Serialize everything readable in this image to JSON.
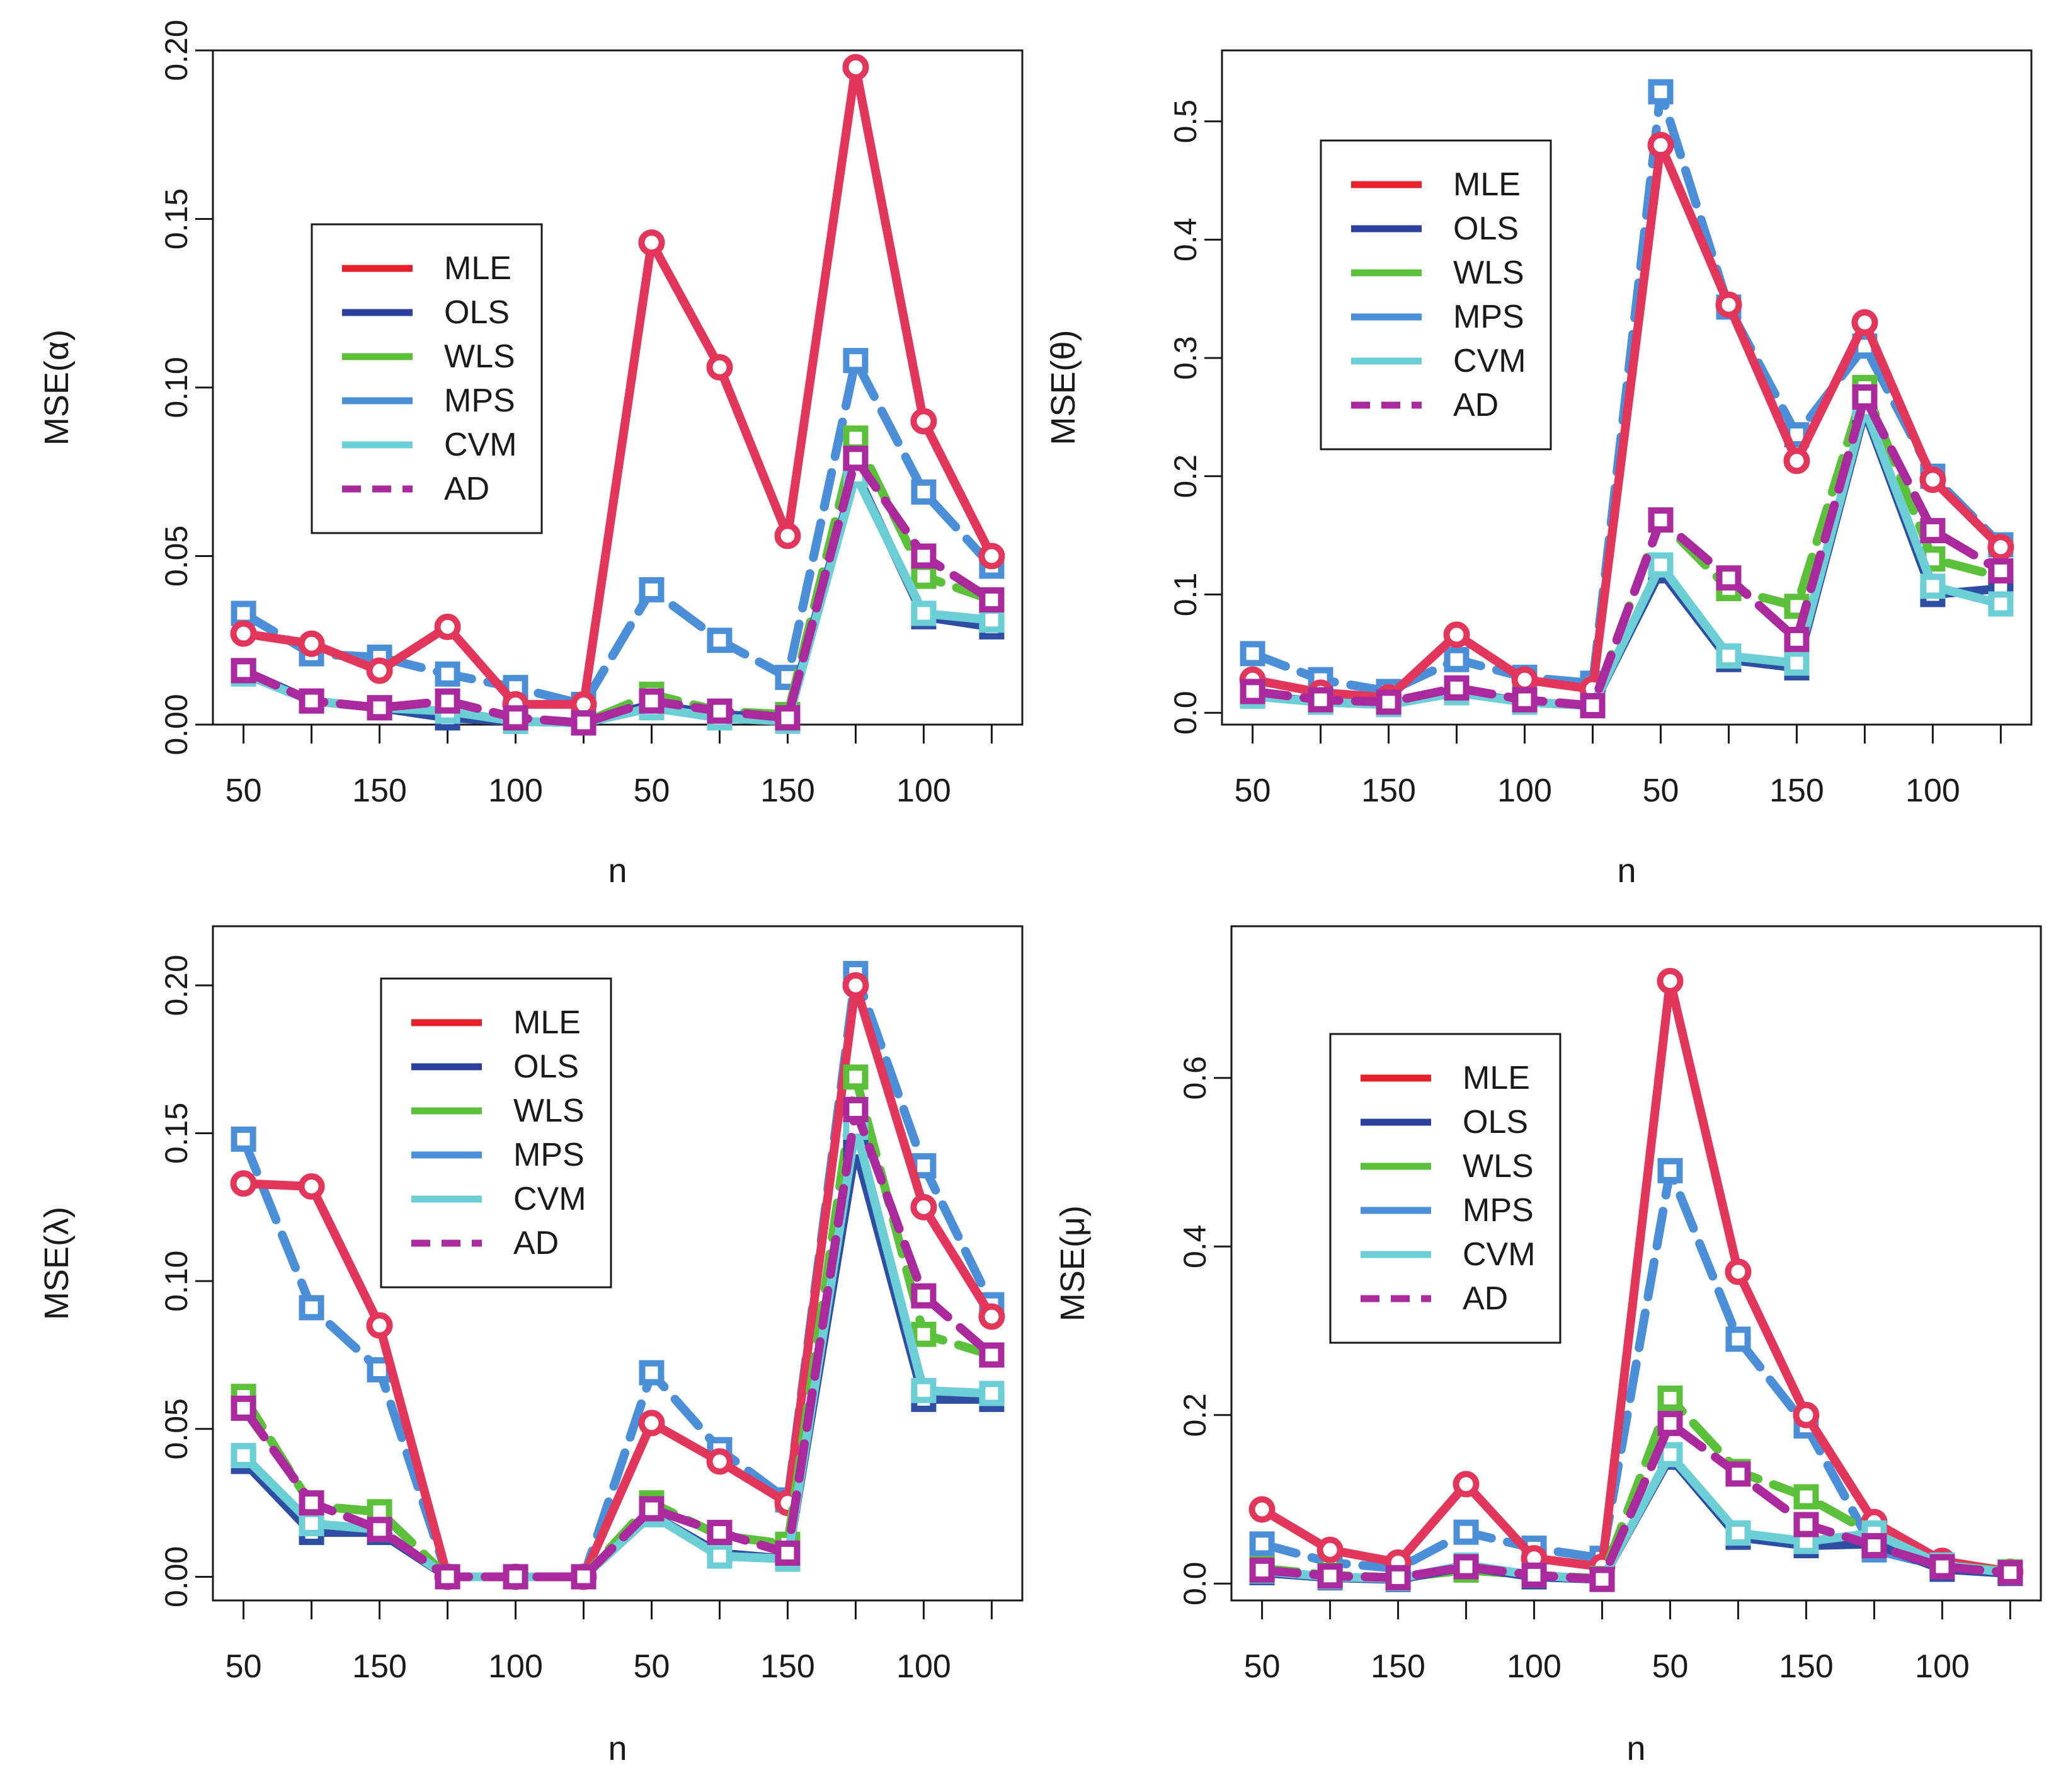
{
  "figure": {
    "background": "#ffffff"
  },
  "series_styles": {
    "MLE": {
      "color": "#e2365b",
      "dash": false,
      "marker": "circle"
    },
    "OLS": {
      "color": "#2e4ea3",
      "dash": false,
      "marker": "square"
    },
    "WLS": {
      "color": "#5cc13a",
      "dash": true,
      "marker": "square"
    },
    "MPS": {
      "color": "#4a8fd8",
      "dash": true,
      "marker": "square"
    },
    "CVM": {
      "color": "#6ccfd6",
      "dash": false,
      "marker": "square"
    },
    "AD": {
      "color": "#aa2a9e",
      "dash": true,
      "marker": "square"
    }
  },
  "legend_line_colors": {
    "MLE": "#e8202a",
    "OLS": "#2a3f9d",
    "WLS": "#5cc13a",
    "MPS": "#4a8fd8",
    "CVM": "#6ccfd6",
    "AD": "#aa2a9e"
  },
  "chart_data": [
    {
      "type": "line",
      "id": "alpha",
      "xlabel": "n",
      "ylabel": "MSE(α)",
      "ylim": [
        0,
        0.2
      ],
      "yticks": [
        "0.00",
        "0.05",
        "0.10",
        "0.15",
        "0.20"
      ],
      "ytick_values": [
        0,
        0.05,
        0.1,
        0.15,
        0.2
      ],
      "xtick_labels": [
        "50",
        "150",
        "100",
        "50",
        "150",
        "100"
      ],
      "xtick_label_positions": [
        1,
        3,
        5,
        7,
        9,
        11
      ],
      "x": [
        1,
        2,
        3,
        4,
        5,
        6,
        7,
        8,
        9,
        10,
        11,
        12
      ],
      "legend": {
        "entries": [
          "MLE",
          "OLS",
          "WLS",
          "MPS",
          "CVM",
          "AD"
        ],
        "placement": "upper-left"
      },
      "series": [
        {
          "name": "MLE",
          "values": [
            0.027,
            0.024,
            0.016,
            0.029,
            0.006,
            0.006,
            0.143,
            0.106,
            0.056,
            0.195,
            0.09,
            0.05
          ]
        },
        {
          "name": "OLS",
          "values": [
            0.016,
            0.007,
            0.005,
            0.002,
            0.001,
            0.0005,
            0.006,
            0.003,
            0.002,
            0.075,
            0.032,
            0.029
          ]
        },
        {
          "name": "WLS",
          "values": [
            0.016,
            0.007,
            0.005,
            0.002,
            0.001,
            0.0005,
            0.009,
            0.004,
            0.003,
            0.085,
            0.044,
            0.037
          ]
        },
        {
          "name": "MPS",
          "values": [
            0.033,
            0.021,
            0.02,
            0.015,
            0.011,
            0.006,
            0.04,
            0.025,
            0.014,
            0.108,
            0.069,
            0.047
          ]
        },
        {
          "name": "CVM",
          "values": [
            0.015,
            0.007,
            0.005,
            0.004,
            0.001,
            0.0005,
            0.005,
            0.002,
            0.001,
            0.074,
            0.033,
            0.031
          ]
        },
        {
          "name": "AD",
          "values": [
            0.016,
            0.007,
            0.005,
            0.007,
            0.002,
            0.0005,
            0.007,
            0.004,
            0.002,
            0.079,
            0.05,
            0.037
          ]
        }
      ]
    },
    {
      "type": "line",
      "id": "theta",
      "xlabel": "n",
      "ylabel": "MSE(θ)",
      "ylim": [
        -0.01,
        0.56
      ],
      "yticks": [
        "0.0",
        "0.1",
        "0.2",
        "0.3",
        "0.4",
        "0.5"
      ],
      "ytick_values": [
        0,
        0.1,
        0.2,
        0.3,
        0.4,
        0.5
      ],
      "xtick_labels": [
        "50",
        "150",
        "100",
        "50",
        "150",
        "100"
      ],
      "xtick_label_positions": [
        1,
        3,
        5,
        7,
        9,
        11
      ],
      "x": [
        1,
        2,
        3,
        4,
        5,
        6,
        7,
        8,
        9,
        10,
        11,
        12
      ],
      "legend": {
        "entries": [
          "MLE",
          "OLS",
          "WLS",
          "MPS",
          "CVM",
          "AD"
        ],
        "placement": "upper-left"
      },
      "series": [
        {
          "name": "MLE",
          "values": [
            0.028,
            0.017,
            0.013,
            0.066,
            0.028,
            0.02,
            0.48,
            0.345,
            0.213,
            0.33,
            0.197,
            0.14
          ]
        },
        {
          "name": "OLS",
          "values": [
            0.015,
            0.009,
            0.007,
            0.018,
            0.009,
            0.006,
            0.12,
            0.045,
            0.038,
            0.255,
            0.1,
            0.105
          ]
        },
        {
          "name": "WLS",
          "values": [
            0.018,
            0.011,
            0.008,
            0.017,
            0.01,
            0.006,
            0.163,
            0.105,
            0.09,
            0.275,
            0.13,
            0.115
          ]
        },
        {
          "name": "MPS",
          "values": [
            0.05,
            0.028,
            0.018,
            0.045,
            0.03,
            0.025,
            0.525,
            0.343,
            0.235,
            0.31,
            0.2,
            0.142
          ]
        },
        {
          "name": "CVM",
          "values": [
            0.014,
            0.009,
            0.007,
            0.017,
            0.009,
            0.006,
            0.125,
            0.048,
            0.042,
            0.258,
            0.107,
            0.092
          ]
        },
        {
          "name": "AD",
          "values": [
            0.018,
            0.011,
            0.009,
            0.021,
            0.011,
            0.006,
            0.163,
            0.114,
            0.062,
            0.267,
            0.154,
            0.12
          ]
        }
      ]
    },
    {
      "type": "line",
      "id": "lambda",
      "xlabel": "n",
      "ylabel": "MSE(λ)",
      "ylim": [
        -0.008,
        0.22
      ],
      "yticks": [
        "0.00",
        "0.05",
        "0.10",
        "0.15",
        "0.20"
      ],
      "ytick_values": [
        0,
        0.05,
        0.1,
        0.15,
        0.2
      ],
      "xtick_labels": [
        "50",
        "150",
        "100",
        "50",
        "150",
        "100"
      ],
      "xtick_label_positions": [
        1,
        3,
        5,
        7,
        9,
        11
      ],
      "x": [
        1,
        2,
        3,
        4,
        5,
        6,
        7,
        8,
        9,
        10,
        11,
        12
      ],
      "legend": {
        "entries": [
          "MLE",
          "OLS",
          "WLS",
          "MPS",
          "CVM",
          "AD"
        ],
        "placement": "upper-center"
      },
      "series": [
        {
          "name": "MLE",
          "values": [
            0.133,
            0.132,
            0.085,
            0.0,
            0.0,
            0.0,
            0.052,
            0.039,
            0.025,
            0.2,
            0.125,
            0.088
          ]
        },
        {
          "name": "OLS",
          "values": [
            0.039,
            0.015,
            0.015,
            0.0,
            0.0,
            0.0,
            0.021,
            0.008,
            0.006,
            0.145,
            0.06,
            0.06
          ]
        },
        {
          "name": "WLS",
          "values": [
            0.061,
            0.024,
            0.022,
            0.0,
            0.0,
            0.0,
            0.025,
            0.014,
            0.011,
            0.169,
            0.082,
            0.075
          ]
        },
        {
          "name": "MPS",
          "values": [
            0.148,
            0.091,
            0.07,
            0.0,
            0.0,
            0.0,
            0.069,
            0.043,
            0.026,
            0.204,
            0.139,
            0.092
          ]
        },
        {
          "name": "CVM",
          "values": [
            0.041,
            0.018,
            0.016,
            0.0,
            0.0,
            0.0,
            0.021,
            0.007,
            0.006,
            0.152,
            0.063,
            0.062
          ]
        },
        {
          "name": "AD",
          "values": [
            0.057,
            0.025,
            0.016,
            0.0,
            0.0,
            0.0,
            0.023,
            0.015,
            0.008,
            0.158,
            0.095,
            0.075
          ]
        }
      ]
    },
    {
      "type": "line",
      "id": "mu",
      "xlabel": "n",
      "ylabel": "MSE(μ)",
      "ylim": [
        -0.02,
        0.78
      ],
      "yticks": [
        "0.0",
        "0.2",
        "0.4",
        "0.6"
      ],
      "ytick_values": [
        0,
        0.2,
        0.4,
        0.6
      ],
      "xtick_labels": [
        "50",
        "150",
        "100",
        "50",
        "150",
        "100"
      ],
      "xtick_label_positions": [
        1,
        3,
        5,
        7,
        9,
        11
      ],
      "x": [
        1,
        2,
        3,
        4,
        5,
        6,
        7,
        8,
        9,
        10,
        11,
        12
      ],
      "legend": {
        "entries": [
          "MLE",
          "OLS",
          "WLS",
          "MPS",
          "CVM",
          "AD"
        ],
        "placement": "upper-left"
      },
      "series": [
        {
          "name": "MLE",
          "values": [
            0.088,
            0.04,
            0.025,
            0.118,
            0.03,
            0.02,
            0.715,
            0.37,
            0.2,
            0.073,
            0.027,
            0.014
          ]
        },
        {
          "name": "OLS",
          "values": [
            0.013,
            0.007,
            0.005,
            0.02,
            0.008,
            0.005,
            0.15,
            0.055,
            0.045,
            0.047,
            0.017,
            0.012
          ]
        },
        {
          "name": "WLS",
          "values": [
            0.018,
            0.01,
            0.007,
            0.016,
            0.01,
            0.006,
            0.22,
            0.133,
            0.103,
            0.058,
            0.022,
            0.014
          ]
        },
        {
          "name": "MPS",
          "values": [
            0.047,
            0.025,
            0.018,
            0.061,
            0.042,
            0.03,
            0.49,
            0.29,
            0.187,
            0.04,
            0.02,
            0.013
          ]
        },
        {
          "name": "CVM",
          "values": [
            0.015,
            0.008,
            0.006,
            0.022,
            0.01,
            0.005,
            0.153,
            0.06,
            0.05,
            0.06,
            0.022,
            0.013
          ]
        },
        {
          "name": "AD",
          "values": [
            0.016,
            0.009,
            0.007,
            0.02,
            0.01,
            0.005,
            0.19,
            0.13,
            0.07,
            0.045,
            0.02,
            0.013
          ]
        }
      ]
    }
  ]
}
